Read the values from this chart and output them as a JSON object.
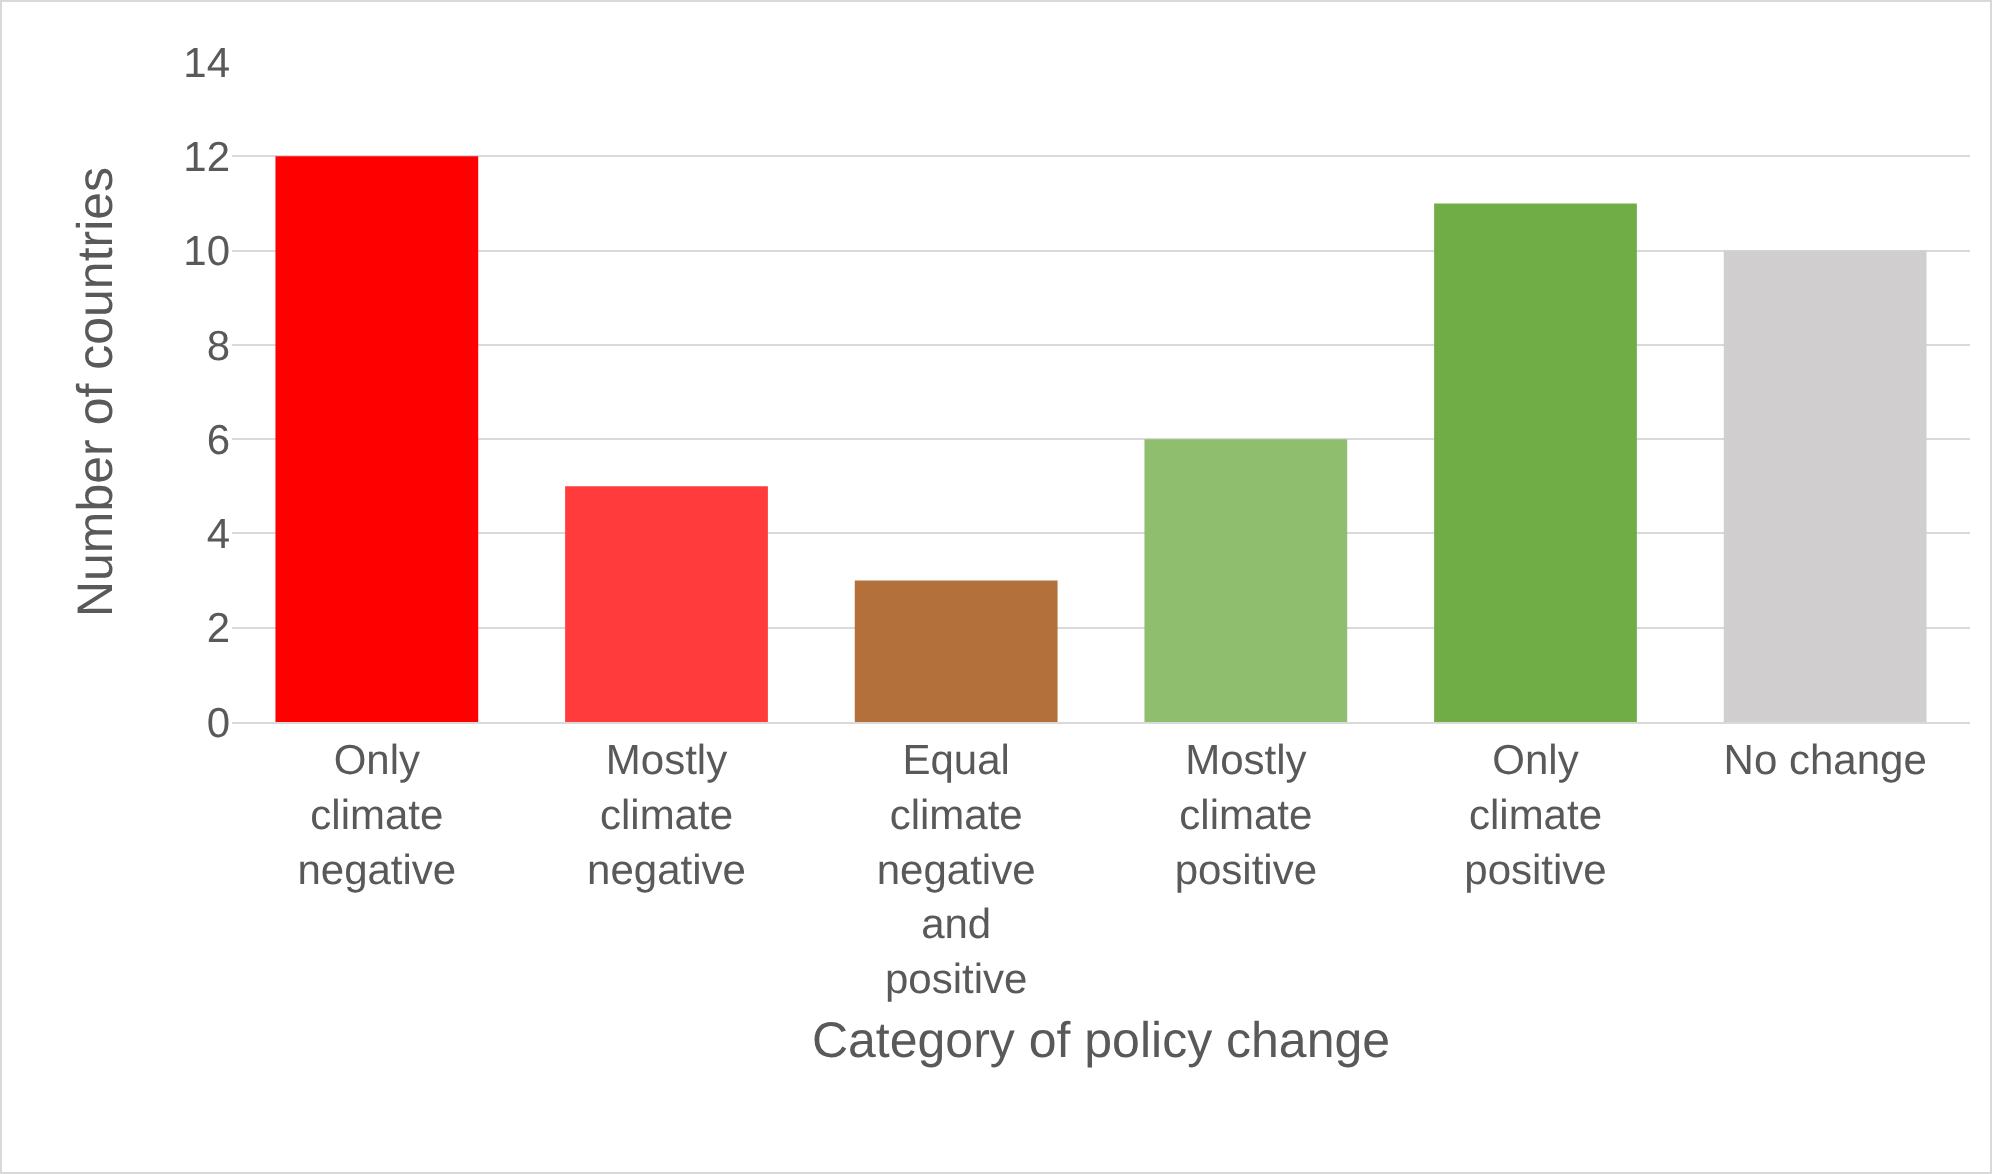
{
  "chart_data": {
    "type": "bar",
    "xlabel": "Category of policy change",
    "ylabel": "Number of countries",
    "categories": [
      "Only climate negative",
      "Mostly climate negative",
      "Equal climate negative and positive",
      "Mostly climate positive",
      "Only climate positive",
      "No change"
    ],
    "values": [
      12,
      5,
      3,
      6,
      11,
      10
    ],
    "colors": [
      "#ff0000",
      "#ff3b3b",
      "#b4703a",
      "#8fbf6e",
      "#70ad47",
      "#d0cece"
    ],
    "ylim": [
      0,
      14
    ],
    "yticks": [
      0,
      2,
      4,
      6,
      8,
      10,
      12,
      14
    ],
    "grid": "y",
    "legend": false
  }
}
